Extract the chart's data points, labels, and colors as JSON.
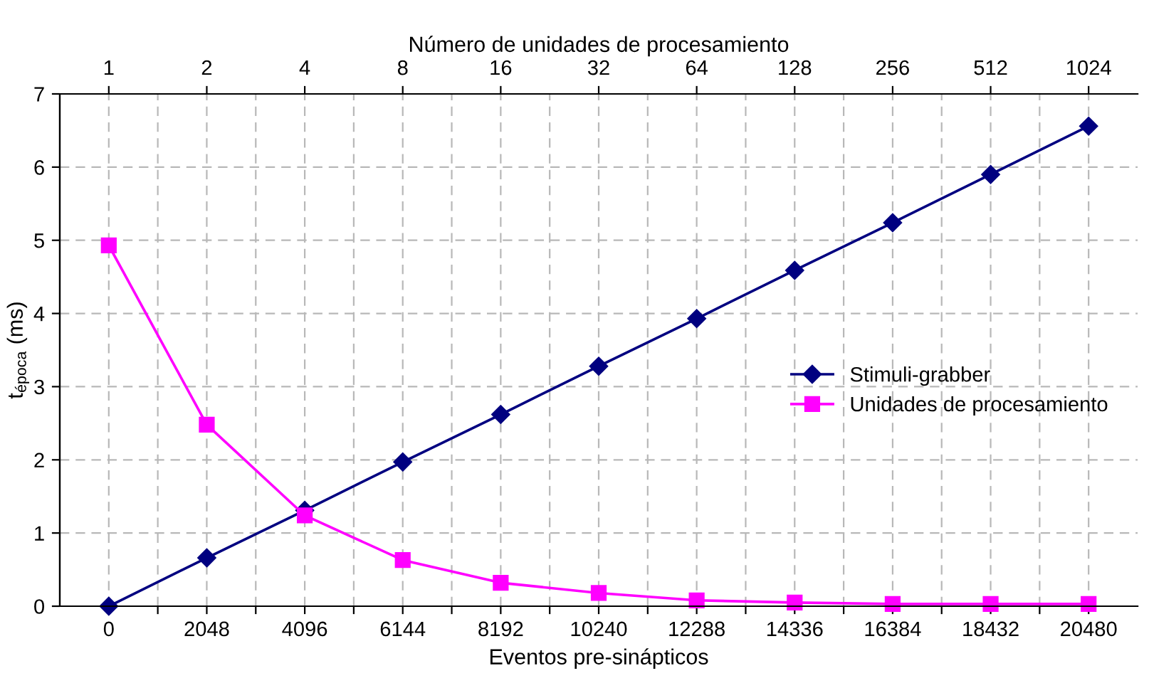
{
  "chart_data": {
    "type": "line",
    "x2label": "Número de unidades de procesamiento",
    "xlabel": "Eventos pre-sinápticos",
    "ylabel": "t$_{época}$ (ms)",
    "x": [
      0,
      2048,
      4096,
      6144,
      8192,
      10240,
      12288,
      14336,
      16384,
      18432,
      20480
    ],
    "xlim": [
      -1024,
      21504
    ],
    "xticks": [
      0,
      {
        "value": 1024,
        "label": null
      },
      2048,
      {
        "value": 3072,
        "label": null
      },
      4096,
      {
        "value": 5120,
        "label": null
      },
      6144,
      {
        "value": 7168,
        "label": null
      },
      8192,
      {
        "value": 9216,
        "label": null
      },
      10240,
      {
        "value": 11264,
        "label": null
      },
      12288,
      {
        "value": 13312,
        "label": null
      },
      14336,
      {
        "value": 15360,
        "label": null
      },
      16384,
      {
        "value": 17408,
        "label": null
      },
      18432,
      {
        "value": 19456,
        "label": null
      },
      20480
    ],
    "log": "x2",
    "x2lim": [
      0.7071,
      1448.15
    ],
    "x2ticks": [
      1,
      2,
      4,
      8,
      16,
      32,
      64,
      128,
      256,
      512,
      1024
    ],
    "ylim": [
      0,
      7
    ],
    "yticks": [
      0,
      1,
      2,
      3,
      4,
      5,
      6,
      7
    ],
    "grid": true,
    "legend": "right",
    "line_style": "solid",
    "series": [
      {
        "name": "Stimuli-grabber",
        "color": "#000080",
        "marker": "diamond",
        "values": [
          0,
          0.66,
          1.31,
          1.97,
          2.62,
          3.28,
          3.93,
          4.59,
          5.24,
          5.9,
          6.56
        ]
      },
      {
        "name": "Unidades de procesamiento",
        "color": "#ff00ff",
        "marker": "square",
        "values": [
          4.93,
          2.48,
          1.24,
          0.63,
          0.32,
          0.18,
          0.08,
          0.05,
          0.03,
          0.03,
          0.03
        ]
      }
    ]
  }
}
